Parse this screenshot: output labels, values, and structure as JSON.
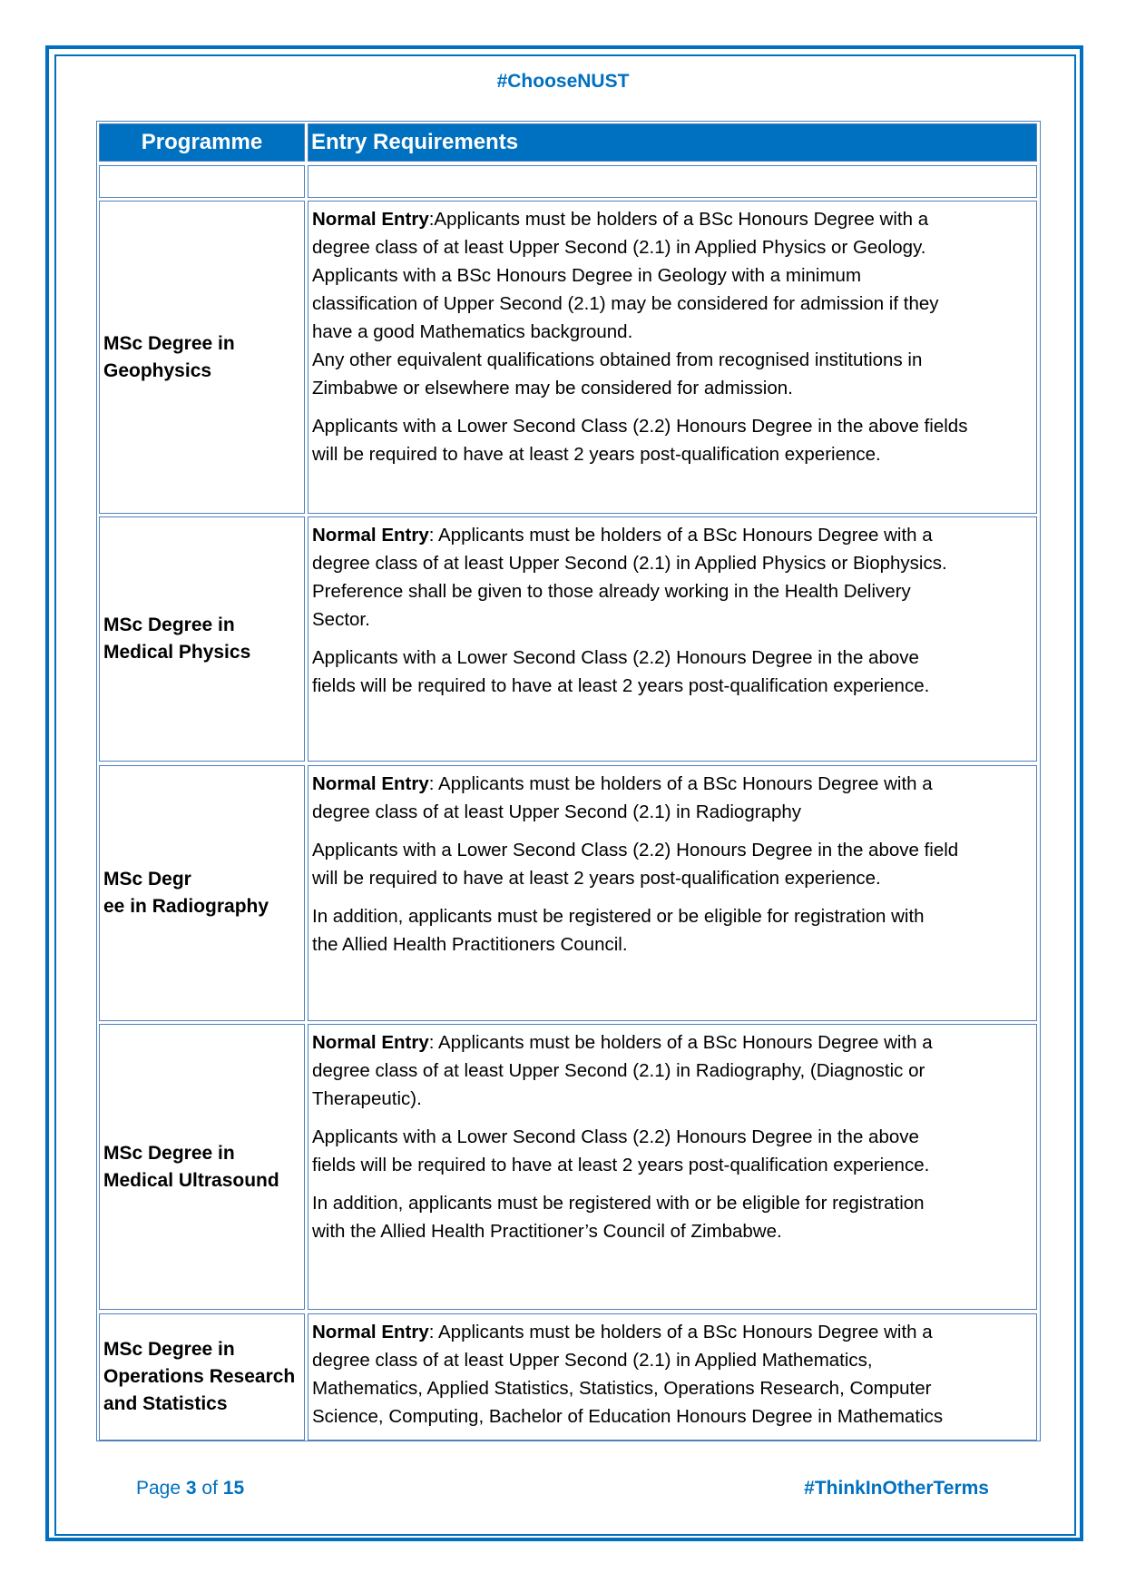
{
  "header": {
    "hashtag": "#ChooseNUST"
  },
  "table": {
    "columns": [
      "Programme",
      "Entry Requirements"
    ],
    "rows": [
      {
        "programme": [
          "MSc Degree in",
          "Geophysics"
        ],
        "paragraphs": [
          {
            "bold": "Normal Entry",
            "lines": [
              ":Applicants must be holders of a BSc Honours Degree with a",
              "degree class of at least Upper Second (2.1) in Applied Physics or Geology.",
              "Applicants with a BSc Honours Degree in Geology with a minimum",
              "classification of Upper Second (2.1) may be considered for admission if they",
              "have a good Mathematics background.",
              "Any other equivalent qualifications obtained from recognised institutions in",
              "Zimbabwe or elsewhere may be considered for admission."
            ]
          },
          {
            "bold": "",
            "lines": [
              "Applicants with a Lower Second Class (2.2) Honours Degree in the above fields",
              "will be required to have at least 2 years post-qualification experience."
            ]
          }
        ]
      },
      {
        "programme": [
          "MSc Degree in",
          "Medical Physics"
        ],
        "paragraphs": [
          {
            "bold": "Normal Entry",
            "lines": [
              ": Applicants must be holders of a BSc Honours Degree with a",
              "degree class of at least Upper Second (2.1) in Applied Physics or Biophysics.",
              "Preference shall be given to those already working in the Health Delivery",
              "Sector."
            ]
          },
          {
            "bold": "",
            "lines": [
              "Applicants with a Lower Second Class (2.2) Honours Degree in the above",
              "fields will be required to have at least 2 years post-qualification experience."
            ]
          }
        ]
      },
      {
        "programme": [
          "MSc Degr",
          "ee  in Radiography"
        ],
        "paragraphs": [
          {
            "bold": "Normal Entry",
            "lines": [
              ": Applicants must be holders of a BSc Honours Degree with a",
              "degree class of at least Upper Second (2.1) in Radiography"
            ]
          },
          {
            "bold": "",
            "lines": [
              "Applicants with a Lower Second Class (2.2) Honours Degree in the above field",
              "will be required to have at least 2 years post-qualification experience."
            ]
          },
          {
            "bold": "",
            "lines": [
              "In addition, applicants must be registered or be eligible for registration with",
              "the Allied Health Practitioners Council."
            ]
          }
        ]
      },
      {
        "programme": [
          "MSc Degree in",
          "Medical Ultrasound"
        ],
        "paragraphs": [
          {
            "bold": "Normal Entry",
            "lines": [
              ": Applicants must be holders of a BSc Honours Degree with a",
              "degree class of at least Upper Second (2.1) in Radiography, (Diagnostic or",
              "Therapeutic)."
            ]
          },
          {
            "bold": "",
            "lines": [
              "Applicants with a Lower Second Class (2.2) Honours Degree in the above",
              "fields will be required to have at least 2 years post-qualification experience."
            ]
          },
          {
            "bold": "",
            "lines": [
              "In addition, applicants must be registered with or be eligible for registration",
              "with the Allied Health Practitioner’s Council of Zimbabwe."
            ]
          }
        ]
      },
      {
        "programme": [
          "MSc Degree in",
          "Operations Research",
          "and Statistics"
        ],
        "paragraphs": [
          {
            "bold": "Normal Entry",
            "lines": [
              ": Applicants must be holders of a BSc Honours Degree with a",
              "degree class of at least Upper Second (2.1) in Applied Mathematics,",
              "Mathematics, Applied Statistics, Statistics, Operations Research, Computer",
              "Science, Computing, Bachelor of Education Honours Degree in Mathematics"
            ]
          }
        ]
      }
    ]
  },
  "footer": {
    "page_prefix": "Page ",
    "page_current": "3",
    "page_of": " of ",
    "page_total": "15",
    "hashtag": "#ThinkInOtherTerms"
  },
  "colors": {
    "brand_blue": "#0070c0",
    "cell_border": "#4f81bd"
  }
}
